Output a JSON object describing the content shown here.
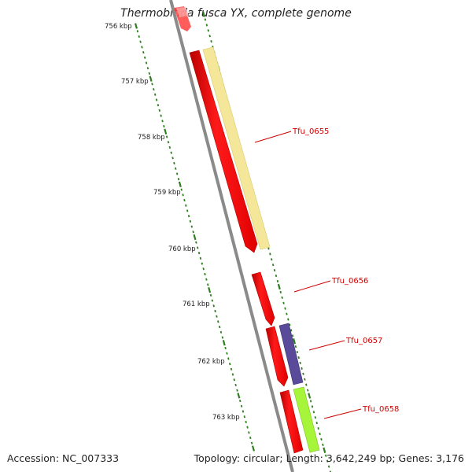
{
  "title": "Thermobifida fusca YX, complete genome",
  "footer": {
    "accession": "Accession: NC_007333",
    "summary": "Topology: circular; Length: 3,642,249 bp; Genes: 3,176"
  },
  "scale": {
    "labels": [
      "756 kbp",
      "757 kbp",
      "758 kbp",
      "759 kbp",
      "760 kbp",
      "761 kbp",
      "762 kbp",
      "763 kbp"
    ]
  },
  "genes": [
    {
      "label": "Tfu_0655"
    },
    {
      "label": "Tfu_0656"
    },
    {
      "label": "Tfu_0657"
    },
    {
      "label": "Tfu_0658"
    }
  ],
  "colors": {
    "backbone": "#8a8a8a",
    "cds": "#ff0000",
    "tick": "#2e7d1e",
    "label": "#d00000",
    "feature_yellow": "#f5e79a",
    "feature_purple": "#5a4a9a",
    "feature_green": "#a6f53a"
  }
}
